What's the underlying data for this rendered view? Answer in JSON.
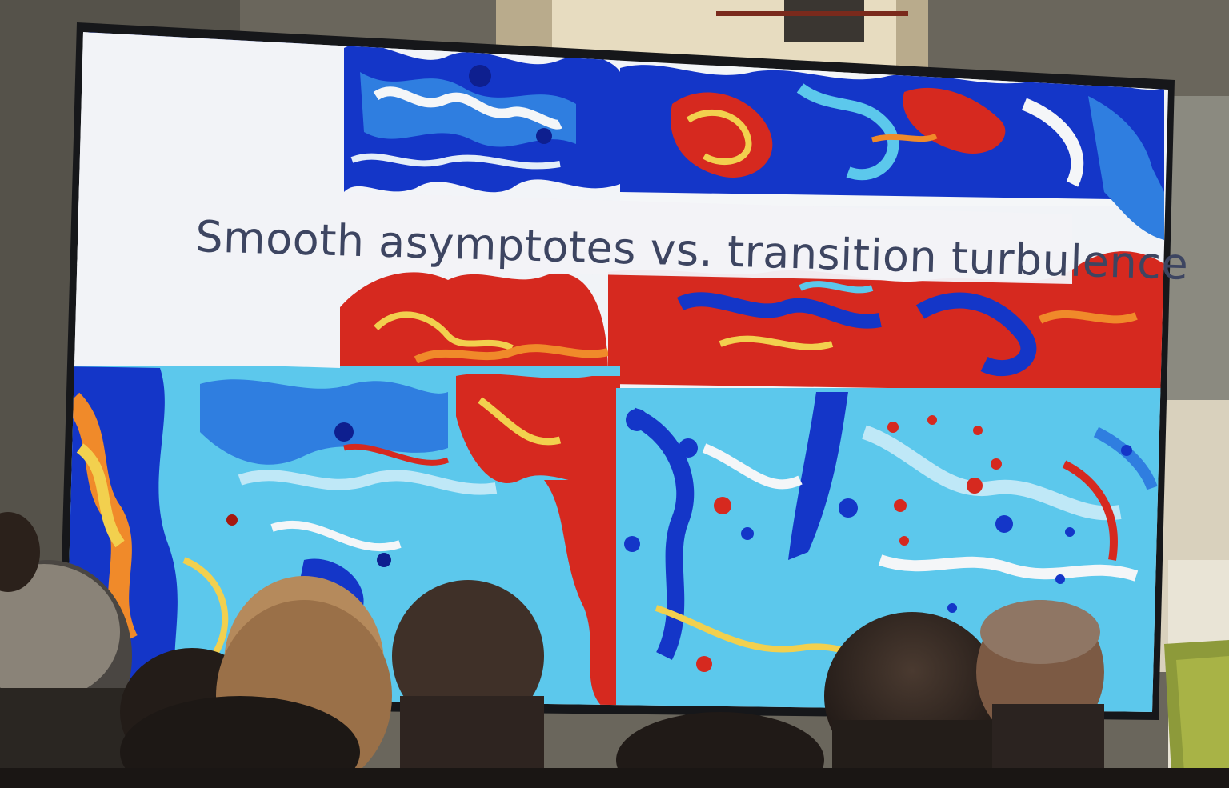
{
  "slide": {
    "title": "Smooth asymptotes vs. transition turbulence"
  },
  "palette": {
    "deep_blue": "#1436c8",
    "mid_blue": "#2f7ee0",
    "cyan": "#5cc8ec",
    "light_cyan": "#bfe8f7",
    "white": "#f4f6f8",
    "yellow": "#f2d04e",
    "orange": "#f08a2a",
    "red": "#d6291f",
    "dark_red": "#a5180f",
    "screen_bezel": "#16171a",
    "title_text": "#3d4561"
  },
  "panels": [
    {
      "name": "top-left-panel",
      "style": "blue-white"
    },
    {
      "name": "top-right-panel",
      "style": "red-blue"
    },
    {
      "name": "bottom-left-panel",
      "style": "mixed-orange-cyan"
    },
    {
      "name": "bottom-right-panel",
      "style": "cyan-vortices"
    }
  ]
}
